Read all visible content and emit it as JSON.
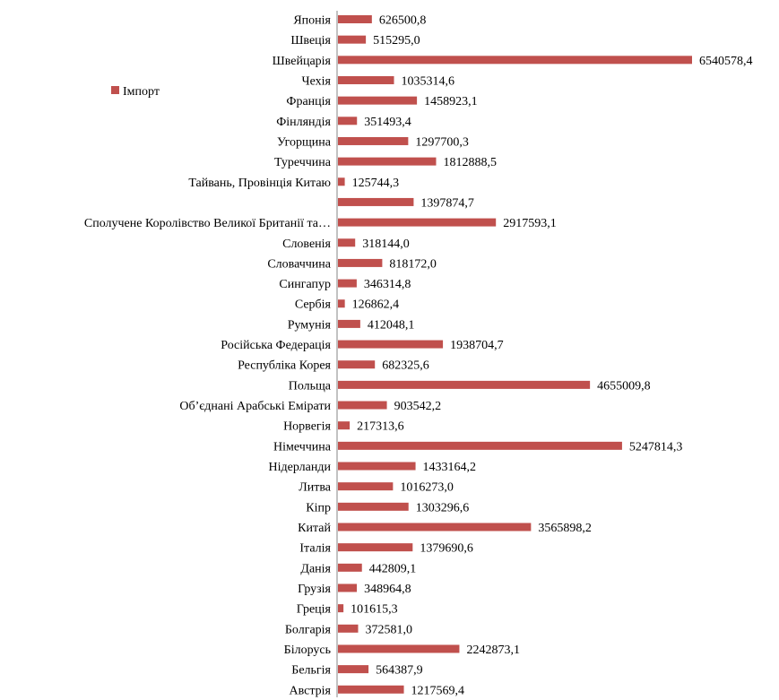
{
  "chart_data": {
    "type": "bar",
    "orientation": "horizontal",
    "categories": [
      "Японія",
      "Швеція",
      "Швейцарія",
      "Чехія",
      "Франція",
      "Фінляндія",
      "Угорщина",
      "Туреччина",
      "Тайвань, Провінція Китаю",
      "",
      "Сполучене Королівство Великої Британії та…",
      "Словенія",
      "Словаччина",
      "Сингапур",
      "Сербія",
      "Румунія",
      "Російська Федерація",
      "Республіка Корея",
      "Польща",
      "Об’єднані Арабські Емірати",
      "Норвегія",
      "Німеччина",
      "Нідерланди",
      "Литва",
      "Кіпр",
      "Китай",
      "Італія",
      "Данія",
      "Грузія",
      "Греція",
      "Болгарія",
      "Білорусь",
      "Бельгія",
      "Австрія"
    ],
    "series": [
      {
        "name": "Імпорт",
        "color": "#C0504D",
        "values": [
          626500.8,
          515295.0,
          6540578.4,
          1035314.6,
          1458923.1,
          351493.4,
          1297700.3,
          1812888.5,
          125744.3,
          1397874.7,
          2917593.1,
          318144.0,
          818172.0,
          346314.8,
          126862.4,
          412048.1,
          1938704.7,
          682325.6,
          4655009.8,
          903542.2,
          217313.6,
          5247814.3,
          1433164.2,
          1016273.0,
          1303296.6,
          3565898.2,
          1379690.6,
          442809.1,
          348964.8,
          101615.3,
          372581.0,
          2242873.1,
          564387.9,
          1217569.4
        ],
        "value_labels": [
          "626500,8",
          "515295,0",
          "6540578,4",
          "1035314,6",
          "1458923,1",
          "351493,4",
          "1297700,3",
          "1812888,5",
          "125744,3",
          "1397874,7",
          "2917593,1",
          "318144,0",
          "818172,0",
          "346314,8",
          "126862,4",
          "412048,1",
          "1938704,7",
          "682325,6",
          "4655009,8",
          "903542,2",
          "217313,6",
          "5247814,3",
          "1433164,2",
          "1016273,0",
          "1303296,6",
          "3565898,2",
          "1379690,6",
          "442809,1",
          "348964,8",
          "101615,3",
          "372581,0",
          "2242873,1",
          "564387,9",
          "1217569,4"
        ]
      }
    ],
    "xlim": [
      0,
      6540578.4
    ],
    "grid": false,
    "legend": "left",
    "axis_color": "#868686"
  }
}
